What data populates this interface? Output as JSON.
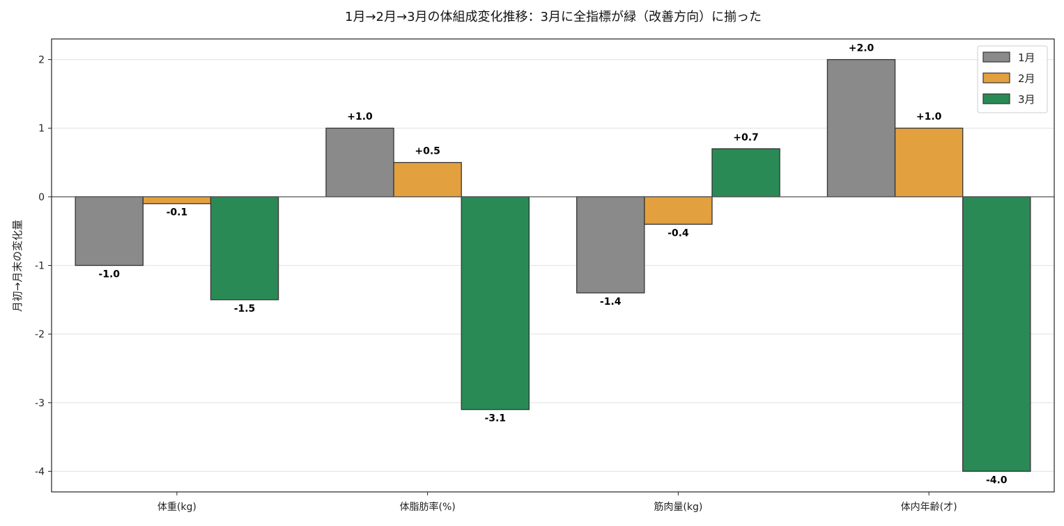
{
  "chart_data": {
    "type": "bar",
    "title": "1月→2月→3月の体組成変化推移：3月に全指標が緑（改善方向）に揃った",
    "xlabel": "",
    "ylabel": "月初→月末の変化量",
    "categories": [
      "体重(kg)",
      "体脂肪率(%)",
      "筋肉量(kg)",
      "体内年齢(才)"
    ],
    "series": [
      {
        "name": "1月",
        "color": "#8a8a8a",
        "values": [
          -1.0,
          1.0,
          -1.4,
          2.0
        ],
        "labels": [
          "-1.0",
          "+1.0",
          "-1.4",
          "+2.0"
        ]
      },
      {
        "name": "2月",
        "color": "#e3a03f",
        "values": [
          -0.1,
          0.5,
          -0.4,
          1.0
        ],
        "labels": [
          "-0.1",
          "+0.5",
          "-0.4",
          "+1.0"
        ]
      },
      {
        "name": "3月",
        "color": "#2a8a55",
        "values": [
          -1.5,
          -3.1,
          0.7,
          -4.0
        ],
        "labels": [
          "-1.5",
          "-3.1",
          "+0.7",
          "-4.0"
        ]
      }
    ],
    "ylim": [
      -4.3,
      2.3
    ],
    "yticks": [
      2,
      1,
      0,
      -1,
      -2,
      -3,
      -4
    ],
    "ytick_labels": [
      "2",
      "1",
      "0",
      "-1",
      "-2",
      "-3",
      "-4"
    ],
    "grid": "horizontal",
    "legend_position": "top-right"
  }
}
